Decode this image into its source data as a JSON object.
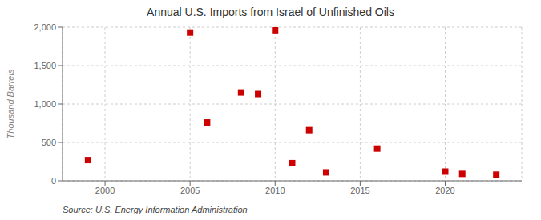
{
  "chart_data": {
    "type": "scatter",
    "title": "Annual U.S. Imports from Israel of Unfinished Oils",
    "ylabel": "Thousand Barrels",
    "annotation": "Source: U.S. Energy Information Administration",
    "x": [
      1999,
      2005,
      2006,
      2008,
      2009,
      2010,
      2011,
      2012,
      2013,
      2016,
      2020,
      2021,
      2023
    ],
    "values": [
      270,
      1930,
      760,
      1150,
      1130,
      1960,
      230,
      660,
      110,
      420,
      120,
      90,
      80
    ],
    "color": "#cc0000",
    "marker": "square",
    "xlim": [
      1997.5,
      2024.5
    ],
    "ylim": [
      0,
      2000
    ],
    "xticks": [
      2000,
      2005,
      2010,
      2015,
      2020
    ],
    "yticks": [
      0,
      500,
      {
        "value": 1000,
        "label": "1,000"
      },
      {
        "value": 1500,
        "label": "1,500"
      },
      {
        "value": 2000,
        "label": "2,000"
      }
    ],
    "grid": true
  }
}
